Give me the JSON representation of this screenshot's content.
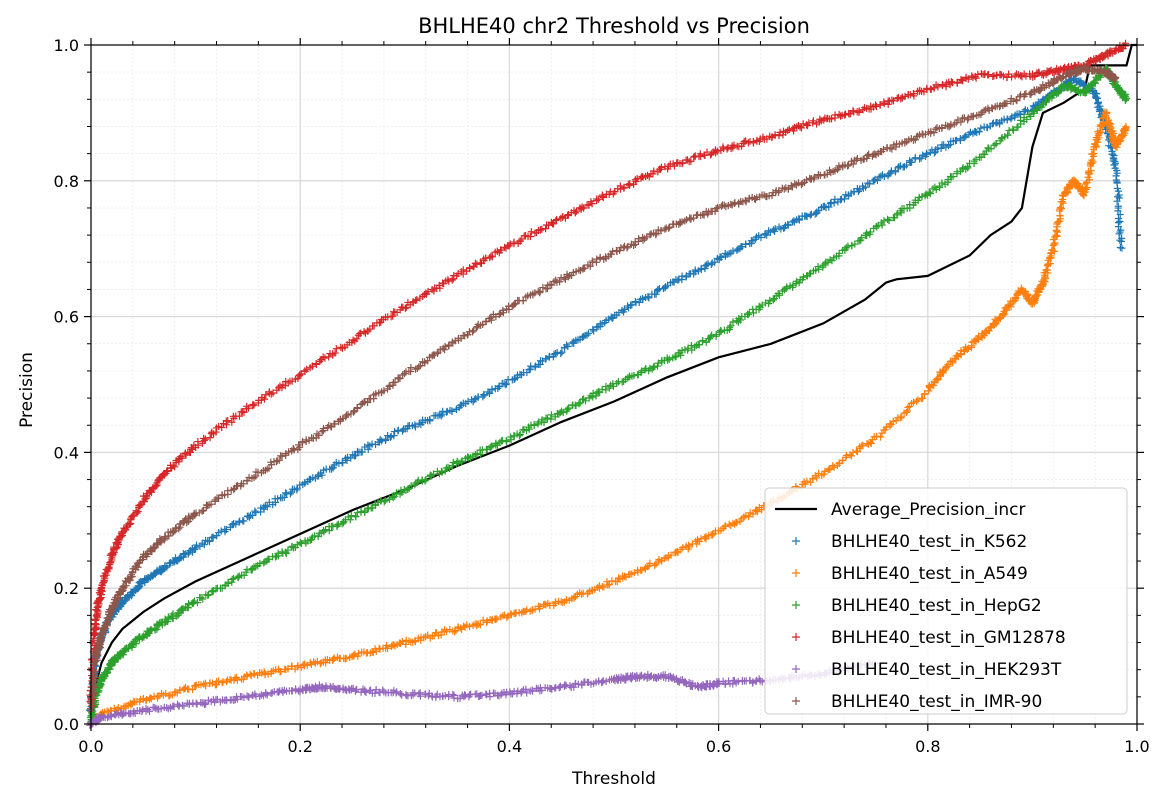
{
  "chart_data": {
    "type": "line",
    "title": "BHLHE40 chr2 Threshold vs Precision",
    "xlabel": "Threshold",
    "ylabel": "Precision",
    "xlim": [
      0.0,
      1.0
    ],
    "ylim": [
      0.0,
      1.0
    ],
    "xticks": [
      "0.0",
      "0.2",
      "0.4",
      "0.6",
      "0.8",
      "1.0"
    ],
    "yticks": [
      "0.0",
      "0.2",
      "0.4",
      "0.6",
      "0.8",
      "1.0"
    ],
    "grid": true,
    "legend_position": "lower-right",
    "series": [
      {
        "name": "Average_Precision_incr",
        "style": "line",
        "color": "#000000",
        "x": [
          0.0,
          0.005,
          0.01,
          0.02,
          0.03,
          0.05,
          0.07,
          0.1,
          0.15,
          0.2,
          0.25,
          0.3,
          0.35,
          0.4,
          0.45,
          0.5,
          0.55,
          0.6,
          0.65,
          0.7,
          0.74,
          0.76,
          0.77,
          0.8,
          0.84,
          0.86,
          0.88,
          0.89,
          0.9,
          0.91,
          0.93,
          0.95,
          0.955,
          0.97,
          0.99,
          0.995,
          1.0
        ],
        "y": [
          0.0,
          0.06,
          0.09,
          0.12,
          0.14,
          0.165,
          0.185,
          0.21,
          0.245,
          0.28,
          0.315,
          0.345,
          0.38,
          0.41,
          0.445,
          0.475,
          0.51,
          0.54,
          0.56,
          0.59,
          0.625,
          0.65,
          0.655,
          0.66,
          0.69,
          0.72,
          0.74,
          0.76,
          0.85,
          0.9,
          0.915,
          0.935,
          0.97,
          0.97,
          0.97,
          1.0,
          1.0
        ]
      },
      {
        "name": "BHLHE40_test_in_K562",
        "style": "markers",
        "color": "#1f77b4",
        "x": [
          0.0,
          0.005,
          0.01,
          0.02,
          0.03,
          0.05,
          0.07,
          0.1,
          0.15,
          0.2,
          0.25,
          0.3,
          0.35,
          0.4,
          0.45,
          0.5,
          0.55,
          0.6,
          0.65,
          0.7,
          0.75,
          0.8,
          0.85,
          0.9,
          0.92,
          0.94,
          0.96,
          0.97,
          0.98,
          0.985
        ],
        "y": [
          0.02,
          0.1,
          0.13,
          0.16,
          0.18,
          0.21,
          0.23,
          0.26,
          0.305,
          0.35,
          0.395,
          0.435,
          0.465,
          0.505,
          0.55,
          0.6,
          0.645,
          0.685,
          0.725,
          0.76,
          0.8,
          0.84,
          0.875,
          0.905,
          0.93,
          0.95,
          0.93,
          0.88,
          0.82,
          0.7
        ]
      },
      {
        "name": "BHLHE40_test_in_A549",
        "style": "markers",
        "color": "#ff7f0e",
        "x": [
          0.0,
          0.01,
          0.05,
          0.1,
          0.15,
          0.2,
          0.25,
          0.3,
          0.35,
          0.4,
          0.45,
          0.5,
          0.55,
          0.6,
          0.65,
          0.7,
          0.75,
          0.8,
          0.82,
          0.85,
          0.87,
          0.89,
          0.9,
          0.91,
          0.92,
          0.93,
          0.94,
          0.95,
          0.96,
          0.97,
          0.98,
          0.99
        ],
        "y": [
          0.0,
          0.015,
          0.035,
          0.055,
          0.07,
          0.085,
          0.1,
          0.12,
          0.14,
          0.16,
          0.18,
          0.21,
          0.245,
          0.285,
          0.325,
          0.37,
          0.42,
          0.49,
          0.53,
          0.57,
          0.6,
          0.64,
          0.62,
          0.65,
          0.7,
          0.78,
          0.8,
          0.78,
          0.85,
          0.9,
          0.85,
          0.88
        ]
      },
      {
        "name": "BHLHE40_test_in_HepG2",
        "style": "markers",
        "color": "#2ca02c",
        "x": [
          0.0,
          0.005,
          0.01,
          0.02,
          0.03,
          0.05,
          0.07,
          0.1,
          0.15,
          0.2,
          0.25,
          0.3,
          0.35,
          0.4,
          0.45,
          0.5,
          0.55,
          0.6,
          0.65,
          0.7,
          0.75,
          0.8,
          0.85,
          0.9,
          0.93,
          0.95,
          0.97,
          0.98,
          0.99
        ],
        "y": [
          0.0,
          0.045,
          0.065,
          0.09,
          0.105,
          0.13,
          0.15,
          0.18,
          0.225,
          0.265,
          0.305,
          0.345,
          0.385,
          0.42,
          0.46,
          0.5,
          0.535,
          0.575,
          0.625,
          0.675,
          0.73,
          0.78,
          0.835,
          0.9,
          0.94,
          0.93,
          0.965,
          0.94,
          0.92
        ]
      },
      {
        "name": "BHLHE40_test_in_GM12878",
        "style": "markers",
        "color": "#d62728",
        "x": [
          0.0,
          0.003,
          0.006,
          0.01,
          0.02,
          0.03,
          0.05,
          0.07,
          0.1,
          0.15,
          0.2,
          0.25,
          0.3,
          0.35,
          0.4,
          0.45,
          0.5,
          0.55,
          0.6,
          0.65,
          0.7,
          0.75,
          0.8,
          0.85,
          0.9,
          0.93,
          0.95,
          0.97,
          0.99
        ],
        "y": [
          0.03,
          0.13,
          0.17,
          0.2,
          0.25,
          0.28,
          0.33,
          0.37,
          0.41,
          0.465,
          0.515,
          0.565,
          0.615,
          0.66,
          0.705,
          0.745,
          0.785,
          0.82,
          0.845,
          0.865,
          0.89,
          0.91,
          0.935,
          0.955,
          0.955,
          0.965,
          0.97,
          0.985,
          1.0
        ]
      },
      {
        "name": "BHLHE40_test_in_HEK293T",
        "style": "markers",
        "color": "#9467bd",
        "x": [
          0.0,
          0.01,
          0.05,
          0.1,
          0.15,
          0.2,
          0.22,
          0.25,
          0.3,
          0.35,
          0.4,
          0.45,
          0.5,
          0.52,
          0.55,
          0.58,
          0.6,
          0.65,
          0.7,
          0.75
        ],
        "y": [
          0.0,
          0.01,
          0.02,
          0.03,
          0.04,
          0.05,
          0.055,
          0.05,
          0.045,
          0.04,
          0.045,
          0.055,
          0.065,
          0.07,
          0.07,
          0.055,
          0.06,
          0.065,
          0.075,
          0.09
        ]
      },
      {
        "name": "BHLHE40_test_in_IMR-90",
        "style": "markers",
        "color": "#8c564b",
        "x": [
          0.0,
          0.005,
          0.01,
          0.02,
          0.03,
          0.05,
          0.07,
          0.1,
          0.15,
          0.2,
          0.25,
          0.3,
          0.35,
          0.4,
          0.45,
          0.5,
          0.55,
          0.6,
          0.65,
          0.7,
          0.75,
          0.8,
          0.85,
          0.9,
          0.93,
          0.95,
          0.97,
          0.98
        ],
        "y": [
          0.02,
          0.1,
          0.13,
          0.17,
          0.2,
          0.245,
          0.275,
          0.31,
          0.36,
          0.41,
          0.46,
          0.515,
          0.565,
          0.615,
          0.655,
          0.695,
          0.73,
          0.76,
          0.78,
          0.81,
          0.84,
          0.87,
          0.9,
          0.93,
          0.955,
          0.965,
          0.96,
          0.95
        ]
      }
    ]
  }
}
